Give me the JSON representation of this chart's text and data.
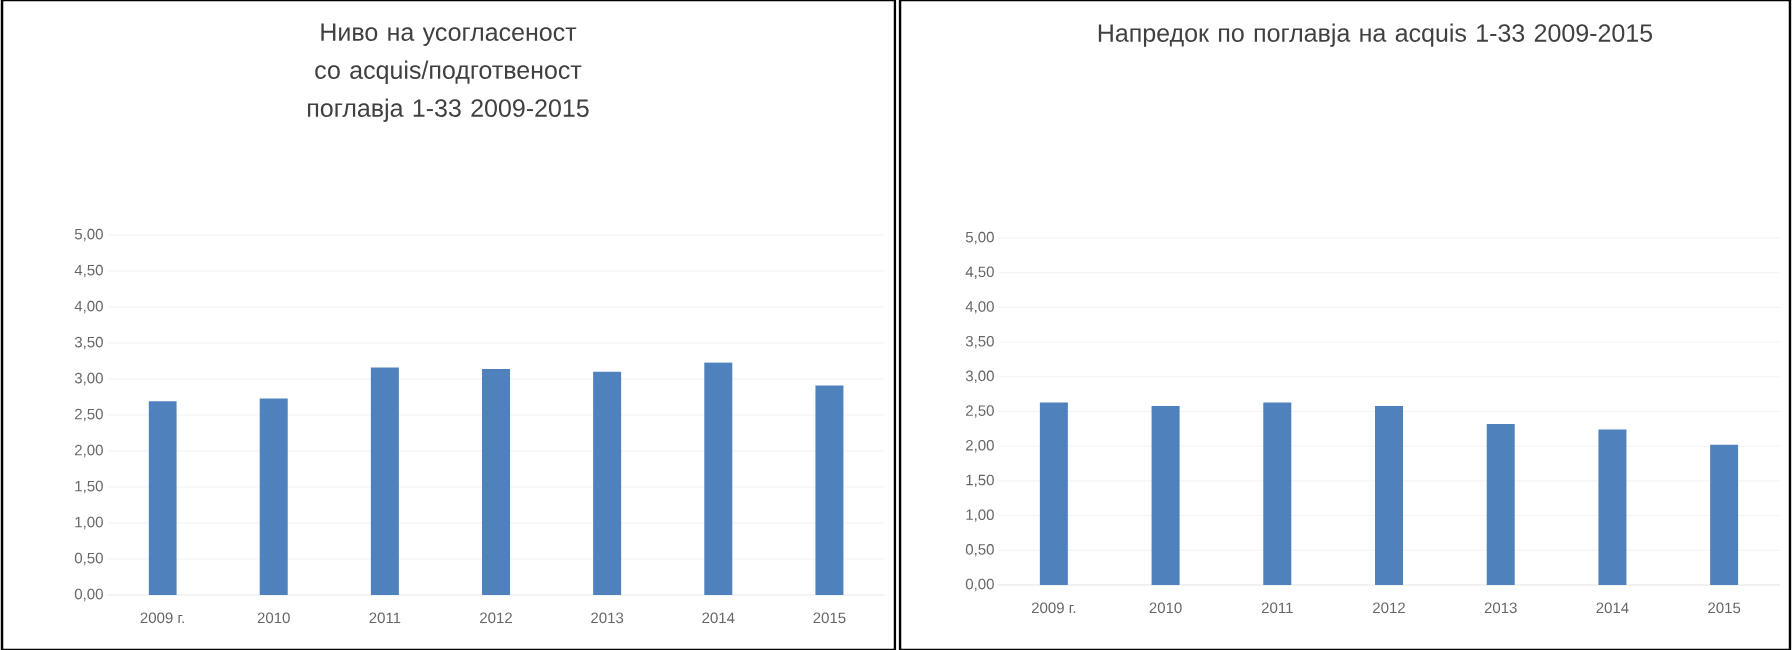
{
  "chart_data": [
    {
      "type": "bar",
      "title": "Ниво на усогласеност со acquis/подготвеност поглавја 1-33 2009-2015",
      "categories": [
        "2009 г.",
        "2010",
        "2011",
        "2012",
        "2013",
        "2014",
        "2015"
      ],
      "values": [
        2.69,
        2.73,
        3.16,
        3.14,
        3.1,
        3.23,
        2.91
      ],
      "color": "#4f81bd",
      "ylim": [
        0,
        5
      ],
      "yticks": [
        {
          "value": 0,
          "label": "0,00"
        },
        {
          "value": 0.5,
          "label": "0,50"
        },
        {
          "value": 1,
          "label": "1,00"
        },
        {
          "value": 1.5,
          "label": "1,50"
        },
        {
          "value": 2,
          "label": "2,00"
        },
        {
          "value": 2.5,
          "label": "2,50"
        },
        {
          "value": 3,
          "label": "3,00"
        },
        {
          "value": 3.5,
          "label": "3,50"
        },
        {
          "value": 4,
          "label": "4,00"
        },
        {
          "value": 4.5,
          "label": "4,50"
        },
        {
          "value": 5,
          "label": "5,00"
        }
      ],
      "grid": "y"
    },
    {
      "type": "bar",
      "title": "Напредок по поглавја на acquis 1-33 2009-2015",
      "categories": [
        "2009 г.",
        "2010",
        "2011",
        "2012",
        "2013",
        "2014",
        "2015"
      ],
      "values": [
        2.63,
        2.58,
        2.63,
        2.58,
        2.32,
        2.24,
        2.02
      ],
      "color": "#4f81bd",
      "ylim": [
        0,
        5
      ],
      "yticks": [
        {
          "value": 0,
          "label": "0,00"
        },
        {
          "value": 0.5,
          "label": "0,50"
        },
        {
          "value": 1,
          "label": "1,00"
        },
        {
          "value": 1.5,
          "label": "1,50"
        },
        {
          "value": 2,
          "label": "2,00"
        },
        {
          "value": 2.5,
          "label": "2,50"
        },
        {
          "value": 3,
          "label": "3,00"
        },
        {
          "value": 3.5,
          "label": "3,50"
        },
        {
          "value": 4,
          "label": "4,00"
        },
        {
          "value": 4.5,
          "label": "4,50"
        },
        {
          "value": 5,
          "label": "5,00"
        }
      ],
      "grid": "y"
    }
  ]
}
